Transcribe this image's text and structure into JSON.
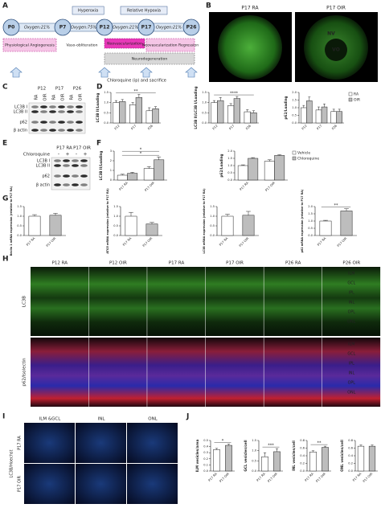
{
  "panel_labels": [
    "A",
    "B",
    "C",
    "D",
    "E",
    "F",
    "G",
    "H",
    "I",
    "J"
  ],
  "timeline": {
    "stages": [
      "P0",
      "P7",
      "P12",
      "P17",
      "P26"
    ],
    "oxygen": [
      "Oxygen:21%",
      "Oxygen:75%",
      "Oxygen:21%",
      "Oxygen:21%"
    ],
    "phases": [
      "Hyperoxia",
      "Relative Hypoxia"
    ],
    "events": [
      "Physiological Angiogenesis",
      "Vaso-obliteration",
      "Neovascularization",
      "Neovascularization Regression",
      "Neurodegeneration"
    ],
    "treatment": "Chloroquine (ip) and sacrifice"
  },
  "flatmounts": {
    "titles": [
      "P17 RA",
      "P17 OIR"
    ],
    "labels": [
      "NV",
      "VO"
    ]
  },
  "blot_c": {
    "ages": [
      "P12",
      "P17",
      "P26"
    ],
    "lanes": [
      "RA",
      "OIR",
      "RA",
      "OIR",
      "RA",
      "OIR"
    ],
    "bands": [
      "LC3B I",
      "LC3B II",
      "p62",
      "β actin"
    ]
  },
  "blot_e": {
    "groups": [
      "P17 RA",
      "P17 OIR"
    ],
    "treatment": "Chloroquine",
    "lanes": [
      "-",
      "+",
      "-",
      "+"
    ],
    "bands": [
      "LC3B I",
      "LC3B II",
      "p62",
      "β actin"
    ]
  },
  "retina_sections": {
    "columns": [
      "P12 RA",
      "P12 OIR",
      "P17 RA",
      "P17 OIR",
      "P26 RA",
      "P26 OIR"
    ],
    "rows": [
      "LC3B",
      "p62/Isolectin"
    ],
    "layers": [
      "ILM",
      "GCL",
      "IPL",
      "INL",
      "OPL",
      "ONL"
    ]
  },
  "vesicle_images": {
    "columns": [
      "ILM &GCL",
      "INL",
      "ONL"
    ],
    "rows": [
      "P17 RA",
      "P17 OIR"
    ],
    "stain": "LC3B/Hoechst"
  },
  "chart_data": [
    {
      "type": "bar",
      "ylabel": "LC3B II/Loading",
      "categories": [
        "P12",
        "P17",
        "P26"
      ],
      "series": [
        {
          "name": "RA",
          "color": "#ffffff",
          "values": [
            1.0,
            0.9,
            0.6
          ],
          "errors": [
            0.1,
            0.1,
            0.15
          ]
        },
        {
          "name": "OIR",
          "color": "#bdbdbd",
          "values": [
            1.05,
            1.25,
            0.7
          ],
          "errors": [
            0.1,
            0.15,
            0.1
          ]
        }
      ],
      "ylim": [
        0,
        1.5
      ],
      "yticks": [
        {
          "value": 0,
          "label": "0.0"
        },
        0.5,
        {
          "value": 1,
          "label": "1.0"
        },
        1.5
      ],
      "annotations": [
        "**"
      ]
    },
    {
      "type": "bar",
      "ylabel": "LC3B II/LC3B I/Loading",
      "categories": [
        "P12",
        "P17",
        "P26"
      ],
      "series": [
        {
          "name": "RA",
          "color": "#ffffff",
          "values": [
            1.0,
            0.85,
            0.55
          ],
          "errors": [
            0.1,
            0.1,
            0.1
          ]
        },
        {
          "name": "OIR",
          "color": "#bdbdbd",
          "values": [
            1.1,
            1.2,
            0.5
          ],
          "errors": [
            0.15,
            0.1,
            0.1
          ]
        }
      ],
      "ylim": [
        0,
        1.5
      ],
      "yticks": [
        {
          "value": 0,
          "label": "0.0"
        },
        0.5,
        {
          "value": 1,
          "label": "1.0"
        },
        1.5
      ],
      "annotations": [
        "****"
      ]
    },
    {
      "type": "bar",
      "ylabel": "p62/Loading",
      "categories": [
        "P12",
        "P17",
        "P26"
      ],
      "series": [
        {
          "name": "RA",
          "color": "#ffffff",
          "values": [
            1.0,
            0.85,
            0.75
          ],
          "errors": [
            0.15,
            0.2,
            0.15
          ]
        },
        {
          "name": "OIR",
          "color": "#bdbdbd",
          "values": [
            1.45,
            1.05,
            0.75
          ],
          "errors": [
            0.25,
            0.2,
            0.15
          ]
        }
      ],
      "ylim": [
        0,
        2
      ],
      "yticks": [
        {
          "value": 0,
          "label": "0.0"
        },
        0.5,
        {
          "value": 1,
          "label": "1.0"
        },
        1.5,
        {
          "value": 2,
          "label": "2.0"
        }
      ],
      "legend": "right"
    },
    {
      "type": "bar",
      "ylabel": "LC3B II/Loading",
      "categories": [
        "P17 RA",
        "P17 OIR"
      ],
      "series": [
        {
          "name": "Vehicle",
          "color": "#ffffff",
          "values": [
            0.5,
            1.2
          ],
          "errors": [
            0.1,
            0.2
          ]
        },
        {
          "name": "Chloroquine",
          "color": "#bdbdbd",
          "values": [
            0.7,
            2.1
          ],
          "errors": [
            0.1,
            0.3
          ]
        }
      ],
      "ylim": [
        0,
        3
      ],
      "yticks": [
        0,
        1,
        2,
        3
      ],
      "annotations": [
        "*",
        "*"
      ]
    },
    {
      "type": "bar",
      "ylabel": "p62/Loading",
      "categories": [
        "P17 RA",
        "P17 OIR"
      ],
      "series": [
        {
          "name": "Vehicle",
          "color": "#ffffff",
          "values": [
            1.0,
            1.3
          ],
          "errors": [
            0.05,
            0.1
          ]
        },
        {
          "name": "Chloroquine",
          "color": "#bdbdbd",
          "values": [
            1.5,
            1.7
          ],
          "errors": [
            0.05,
            0.05
          ]
        }
      ],
      "ylim": [
        0,
        2
      ],
      "yticks": [
        {
          "value": 0,
          "label": "0.0"
        },
        0.5,
        {
          "value": 1,
          "label": "1.0"
        },
        1.5,
        {
          "value": 2,
          "label": "2.0"
        }
      ],
      "legend": "right"
    },
    {
      "type": "bar",
      "ylabel": "Beclin 1 mRNA expression (relative to P17 RA)",
      "categories": [
        "P17 RA",
        "P17 OIR"
      ],
      "values": [
        1.0,
        1.05
      ],
      "errors": [
        0.08,
        0.1
      ],
      "colors": [
        "#ffffff",
        "#bdbdbd"
      ],
      "ylim": [
        0,
        1.5
      ],
      "yticks": [
        {
          "value": 0,
          "label": "0.0"
        },
        0.5,
        {
          "value": 1,
          "label": "1.0"
        },
        1.5
      ]
    },
    {
      "type": "bar",
      "ylabel": "ATG5 mRNA expression (relative to P17 RA)",
      "categories": [
        "P17 RA",
        "P17 OIR"
      ],
      "values": [
        1.0,
        0.6
      ],
      "errors": [
        0.2,
        0.08
      ],
      "colors": [
        "#ffffff",
        "#bdbdbd"
      ],
      "ylim": [
        0,
        1.5
      ],
      "yticks": [
        {
          "value": 0,
          "label": "0.0"
        },
        0.5,
        {
          "value": 1,
          "label": "1.0"
        },
        1.5
      ]
    },
    {
      "type": "bar",
      "ylabel": "LC3B mRNA expression (relative to P17 RA)",
      "categories": [
        "P17 RA",
        "P17 OIR"
      ],
      "values": [
        1.0,
        1.05
      ],
      "errors": [
        0.1,
        0.2
      ],
      "colors": [
        "#ffffff",
        "#bdbdbd"
      ],
      "ylim": [
        0,
        1.5
      ],
      "yticks": [
        {
          "value": 0,
          "label": "0.0"
        },
        0.5,
        {
          "value": 1,
          "label": "1.0"
        },
        1.5
      ]
    },
    {
      "type": "bar",
      "ylabel": "p62 mRNA expression (relative to P17 RA)",
      "categories": [
        "P17 RA",
        "P17 OIR"
      ],
      "values": [
        1.0,
        1.7
      ],
      "errors": [
        0.05,
        0.15
      ],
      "colors": [
        "#ffffff",
        "#bdbdbd"
      ],
      "ylim": [
        0,
        2
      ],
      "yticks": [
        {
          "value": 0,
          "label": "0.0"
        },
        0.5,
        {
          "value": 1,
          "label": "1.0"
        },
        1.5,
        {
          "value": 2,
          "label": "2.0"
        }
      ],
      "annotations": [
        "**"
      ]
    },
    {
      "type": "bar",
      "ylabel": "ILM vesicles/area",
      "categories": [
        "P17 RA",
        "P17 OIR"
      ],
      "values": [
        0.35,
        0.42
      ],
      "errors": [
        0.02,
        0.02
      ],
      "colors": [
        "#ffffff",
        "#bdbdbd"
      ],
      "ylim": [
        0,
        0.5
      ],
      "yticks": [
        {
          "value": 0,
          "label": "0.0"
        },
        0.1,
        0.2,
        0.3,
        0.4,
        0.5
      ],
      "annotations": [
        "*"
      ]
    },
    {
      "type": "bar",
      "ylabel": "GCL vesicles/cell",
      "categories": [
        "P17 RA",
        "P17 OIR"
      ],
      "values": [
        0.7,
        0.95
      ],
      "errors": [
        0.2,
        0.15
      ],
      "colors": [
        "#ffffff",
        "#bdbdbd"
      ],
      "ylim": [
        0,
        1.5
      ],
      "yticks": [
        {
          "value": 0,
          "label": "0.0"
        },
        0.5,
        {
          "value": 1,
          "label": "1.0"
        },
        1.5
      ],
      "annotations": [
        "***"
      ]
    },
    {
      "type": "bar",
      "ylabel": "INL vesicles/cell",
      "categories": [
        "P17 RA",
        "P17 OIR"
      ],
      "values": [
        0.5,
        0.62
      ],
      "errors": [
        0.03,
        0.03
      ],
      "colors": [
        "#ffffff",
        "#bdbdbd"
      ],
      "ylim": [
        0,
        0.8
      ],
      "yticks": [
        {
          "value": 0,
          "label": "0.0"
        },
        0.2,
        0.4,
        0.6,
        0.8
      ],
      "annotations": [
        "**"
      ]
    },
    {
      "type": "bar",
      "ylabel": "ONL vesicles/cell",
      "categories": [
        "P17 RA",
        "P17 OIR"
      ],
      "values": [
        0.65,
        0.65
      ],
      "errors": [
        0.03,
        0.03
      ],
      "colors": [
        "#ffffff",
        "#bdbdbd"
      ],
      "ylim": [
        0,
        0.8
      ],
      "yticks": [
        {
          "value": 0,
          "label": "0.0"
        },
        0.2,
        0.4,
        0.6,
        0.8
      ]
    }
  ]
}
